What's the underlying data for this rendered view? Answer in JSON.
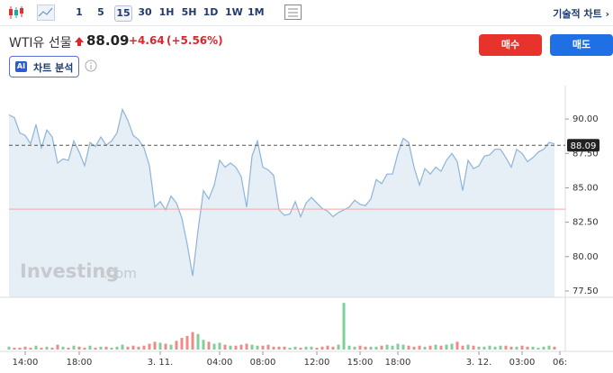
{
  "toolbar": {
    "intervals": [
      "1",
      "5",
      "15",
      "30",
      "1H",
      "5H",
      "1D",
      "1W",
      "1M"
    ],
    "selected": 2,
    "chart_link": "기술적 차트 ›"
  },
  "header": {
    "name": "WTI유 선물",
    "price": "88.09",
    "change": "+4.64",
    "change_pct": "(+5.56%)",
    "ai_badge": "AI",
    "ai_label": "차트 분석",
    "buy": "매수",
    "sell": "매도"
  },
  "watermark": {
    "brand": "Investing",
    "suffix": ".com"
  },
  "chart_data": {
    "type": "line",
    "series": [
      {
        "color": "#8db4d8",
        "fill": "#e6eef6",
        "values": [
          90.3,
          90.1,
          89.0,
          88.8,
          88.2,
          89.6,
          87.9,
          89.2,
          88.7,
          86.8,
          87.1,
          87.0,
          88.4,
          87.6,
          86.6,
          88.3,
          88.0,
          88.7,
          88.1,
          88.4,
          89.0,
          90.7,
          89.9,
          88.8,
          88.5,
          87.9,
          86.6,
          83.6,
          84.0,
          83.4,
          84.4,
          83.9,
          82.8,
          80.9,
          78.6,
          81.9,
          84.8,
          84.2,
          85.2,
          87.0,
          86.5,
          86.8,
          86.5,
          85.8,
          83.6,
          87.3,
          88.4,
          86.5,
          86.3,
          85.9,
          83.4,
          83.0,
          83.1,
          84.0,
          82.9,
          83.9,
          84.3,
          83.9,
          83.5,
          83.3,
          82.9,
          83.2,
          83.4,
          83.6,
          84.1,
          83.8,
          83.7,
          84.2,
          85.6,
          85.3,
          86.0,
          86.0,
          87.5,
          88.6,
          88.3,
          86.5,
          85.2,
          86.4,
          86.0,
          86.5,
          86.2,
          87.0,
          87.5,
          86.9,
          84.8,
          87.0,
          86.4,
          86.6,
          87.3,
          87.4,
          87.8,
          87.8,
          87.2,
          86.5,
          87.8,
          87.5,
          86.9,
          87.2,
          87.6,
          87.8,
          88.3,
          88.2
        ]
      }
    ],
    "last_value": 88.09,
    "reference_line": {
      "value": 83.45,
      "color": "#f2a6a6"
    },
    "xlim": [
      0,
      103
    ],
    "xticks": [
      {
        "value": 3,
        "label": "14:00"
      },
      {
        "value": 13,
        "label": "18:00"
      },
      {
        "value": 28,
        "label": "3. 11."
      },
      {
        "value": 39,
        "label": "04:00"
      },
      {
        "value": 47,
        "label": "08:00"
      },
      {
        "value": 57,
        "label": "12:00"
      },
      {
        "value": 65,
        "label": "15:00"
      },
      {
        "value": 72,
        "label": "18:00"
      },
      {
        "value": 87,
        "label": "3. 12."
      },
      {
        "value": 95,
        "label": "03:00"
      },
      {
        "value": 102,
        "label": "06:"
      }
    ],
    "ylim": [
      77.04,
      92.43
    ],
    "yticks": [
      {
        "value": 90,
        "label": "90.00"
      },
      {
        "value": 87.5,
        "label": "87.50"
      },
      {
        "value": 85,
        "label": "85.00"
      },
      {
        "value": 82.5,
        "label": "82.50"
      },
      {
        "value": 80,
        "label": "80.00"
      },
      {
        "value": 77.5,
        "label": "77.50"
      }
    ],
    "volume": {
      "up_color": "#7fcf9a",
      "down_color": "#ef8a86",
      "ylim": [
        0,
        50
      ],
      "values": [
        3,
        2,
        2,
        3,
        2,
        4,
        2,
        3,
        2,
        5,
        3,
        2,
        4,
        3,
        2,
        4,
        2,
        3,
        3,
        2,
        3,
        5,
        3,
        4,
        3,
        4,
        6,
        8,
        7,
        6,
        5,
        9,
        12,
        14,
        18,
        16,
        10,
        8,
        6,
        7,
        5,
        4,
        4,
        5,
        6,
        5,
        4,
        4,
        5,
        3,
        3,
        3,
        2,
        3,
        2,
        3,
        3,
        2,
        3,
        4,
        3,
        5,
        48,
        4,
        3,
        4,
        3,
        3,
        3,
        4,
        5,
        4,
        6,
        5,
        4,
        3,
        4,
        3,
        4,
        5,
        4,
        5,
        6,
        8,
        4,
        5,
        4,
        3,
        3,
        4,
        3,
        4,
        4,
        3,
        3,
        4,
        3,
        3,
        2,
        3,
        4,
        3
      ]
    }
  }
}
